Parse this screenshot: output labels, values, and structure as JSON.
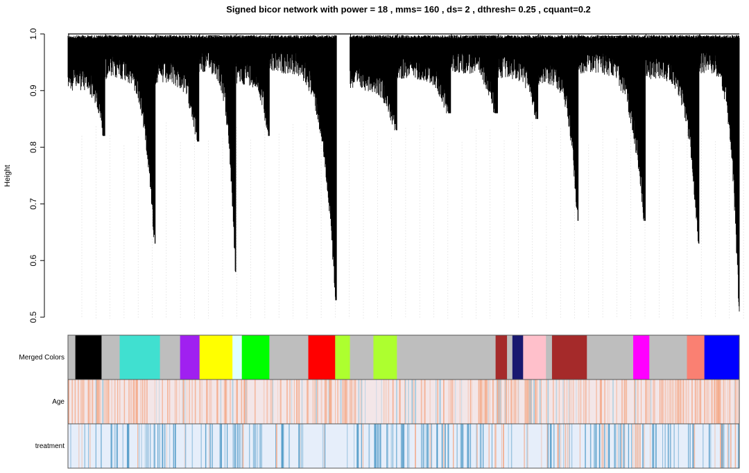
{
  "chart_data": {
    "type": "dendrogram",
    "title": "Signed bicor network with power =  18 , mms= 160 , ds= 2 , dthresh= 0.25 , cquant=0.2",
    "ylabel": "Height",
    "ylim": [
      0.5,
      1.0
    ],
    "yticks": [
      "0.5",
      "0.6",
      "0.7",
      "0.8",
      "0.9",
      "1.0"
    ],
    "ytick_values": [
      0.5,
      0.6,
      0.7,
      0.8,
      0.9,
      1.0
    ],
    "branches": [
      {
        "start": 0.0,
        "end": 0.055,
        "base": 0.94,
        "min": 0.82
      },
      {
        "start": 0.055,
        "end": 0.13,
        "base": 0.96,
        "min": 0.63
      },
      {
        "start": 0.13,
        "end": 0.195,
        "base": 0.95,
        "min": 0.81
      },
      {
        "start": 0.195,
        "end": 0.25,
        "base": 0.97,
        "min": 0.58
      },
      {
        "start": 0.25,
        "end": 0.3,
        "base": 0.95,
        "min": 0.82
      },
      {
        "start": 0.3,
        "end": 0.4,
        "base": 0.97,
        "min": 0.53
      },
      {
        "start": 0.42,
        "end": 0.49,
        "base": 0.94,
        "min": 0.83
      },
      {
        "start": 0.49,
        "end": 0.57,
        "base": 0.96,
        "min": 0.86
      },
      {
        "start": 0.57,
        "end": 0.64,
        "base": 0.97,
        "min": 0.86
      },
      {
        "start": 0.64,
        "end": 0.7,
        "base": 0.96,
        "min": 0.85
      },
      {
        "start": 0.7,
        "end": 0.76,
        "base": 0.95,
        "min": 0.67
      },
      {
        "start": 0.76,
        "end": 0.86,
        "base": 0.97,
        "min": 0.67
      },
      {
        "start": 0.86,
        "end": 0.94,
        "base": 0.96,
        "min": 0.63
      },
      {
        "start": 0.94,
        "end": 1.0,
        "base": 0.97,
        "min": 0.51
      }
    ],
    "tracks": [
      {
        "label": "Merged Colors",
        "segments": [
          {
            "start": 0.0,
            "end": 0.011,
            "color": "#bebebe"
          },
          {
            "start": 0.011,
            "end": 0.05,
            "color": "#000000"
          },
          {
            "start": 0.05,
            "end": 0.077,
            "color": "#bebebe"
          },
          {
            "start": 0.077,
            "end": 0.137,
            "color": "#40e0d0"
          },
          {
            "start": 0.137,
            "end": 0.167,
            "color": "#bebebe"
          },
          {
            "start": 0.167,
            "end": 0.196,
            "color": "#a020f0"
          },
          {
            "start": 0.196,
            "end": 0.245,
            "color": "#ffff00"
          },
          {
            "start": 0.245,
            "end": 0.259,
            "color": "#e0ffff"
          },
          {
            "start": 0.259,
            "end": 0.3,
            "color": "#00ff00"
          },
          {
            "start": 0.3,
            "end": 0.358,
            "color": "#bebebe"
          },
          {
            "start": 0.358,
            "end": 0.398,
            "color": "#ff0000"
          },
          {
            "start": 0.398,
            "end": 0.42,
            "color": "#adff2f"
          },
          {
            "start": 0.42,
            "end": 0.455,
            "color": "#bebebe"
          },
          {
            "start": 0.455,
            "end": 0.49,
            "color": "#adff2f"
          },
          {
            "start": 0.49,
            "end": 0.637,
            "color": "#bebebe"
          },
          {
            "start": 0.637,
            "end": 0.654,
            "color": "#a52a2a"
          },
          {
            "start": 0.654,
            "end": 0.662,
            "color": "#bebebe"
          },
          {
            "start": 0.662,
            "end": 0.678,
            "color": "#191970"
          },
          {
            "start": 0.678,
            "end": 0.712,
            "color": "#ffc0cb"
          },
          {
            "start": 0.712,
            "end": 0.721,
            "color": "#bebebe"
          },
          {
            "start": 0.721,
            "end": 0.773,
            "color": "#a52a2a"
          },
          {
            "start": 0.773,
            "end": 0.842,
            "color": "#bebebe"
          },
          {
            "start": 0.842,
            "end": 0.866,
            "color": "#ff00ff"
          },
          {
            "start": 0.866,
            "end": 0.922,
            "color": "#bebebe"
          },
          {
            "start": 0.922,
            "end": 0.948,
            "color": "#fa8072"
          },
          {
            "start": 0.948,
            "end": 1.0,
            "color": "#0000ff"
          }
        ]
      },
      {
        "label": "Age",
        "base_color": "#f3e6e8",
        "warm_color": "#f4a582",
        "cool_color": "#92c5de",
        "warm_density": [
          0.45,
          0.55,
          0.5,
          0.45,
          0.5,
          0.55,
          0.45,
          0.5,
          0.4,
          0.45,
          0.4,
          0.35,
          0.4,
          0.45,
          0.4,
          0.35,
          0.4,
          0.45,
          0.5,
          0.45,
          0.4,
          0.35,
          0.3,
          0.35,
          0.4,
          0.45,
          0.4,
          0.5,
          0.55,
          0.5,
          0.45,
          0.4,
          0.45,
          0.5,
          0.45,
          0.4,
          0.45,
          0.5,
          0.55,
          0.6,
          0.55,
          0.5,
          0.55,
          0.6,
          0.7,
          0.75,
          0.7,
          0.65,
          0.6,
          0.55
        ],
        "cool_density": [
          0.05,
          0.05,
          0.05,
          0.05,
          0.05,
          0.05,
          0.08,
          0.1,
          0.1,
          0.08,
          0.08,
          0.1,
          0.12,
          0.1,
          0.1,
          0.12,
          0.1,
          0.08,
          0.08,
          0.1,
          0.12,
          0.14,
          0.15,
          0.14,
          0.12,
          0.12,
          0.1,
          0.08,
          0.06,
          0.06,
          0.08,
          0.12,
          0.14,
          0.12,
          0.1,
          0.12,
          0.1,
          0.08,
          0.06,
          0.05,
          0.05,
          0.06,
          0.05,
          0.05,
          0.05,
          0.05,
          0.05,
          0.06,
          0.05,
          0.05
        ]
      },
      {
        "label": "treatment",
        "base_color": "#e6eefa",
        "warm_color": "#f4a582",
        "cool_color": "#4393c3",
        "warm_density": [
          0.15,
          0.12,
          0.05,
          0.03,
          0.03,
          0.03,
          0.05,
          0.05,
          0.05,
          0.05,
          0.05,
          0.05,
          0.05,
          0.05,
          0.05,
          0.05,
          0.05,
          0.08,
          0.08,
          0.08,
          0.05,
          0.05,
          0.05,
          0.05,
          0.05,
          0.05,
          0.05,
          0.05,
          0.05,
          0.05,
          0.12,
          0.2,
          0.2,
          0.18,
          0.15,
          0.15,
          0.12,
          0.1,
          0.12,
          0.1,
          0.1,
          0.1,
          0.1,
          0.12,
          0.1,
          0.12,
          0.1,
          0.1,
          0.1,
          0.12
        ],
        "cool_density": [
          0.15,
          0.18,
          0.35,
          0.45,
          0.4,
          0.35,
          0.35,
          0.3,
          0.25,
          0.25,
          0.4,
          0.45,
          0.35,
          0.3,
          0.25,
          0.25,
          0.2,
          0.18,
          0.18,
          0.2,
          0.25,
          0.3,
          0.35,
          0.3,
          0.35,
          0.5,
          0.55,
          0.45,
          0.4,
          0.35,
          0.2,
          0.12,
          0.1,
          0.1,
          0.12,
          0.15,
          0.15,
          0.2,
          0.25,
          0.45,
          0.5,
          0.3,
          0.2,
          0.18,
          0.2,
          0.22,
          0.2,
          0.18,
          0.18,
          0.2
        ]
      }
    ],
    "colors": {
      "dendrogram": "#000000",
      "gridline": "#d3d3d3",
      "track_border": "#555555"
    }
  }
}
